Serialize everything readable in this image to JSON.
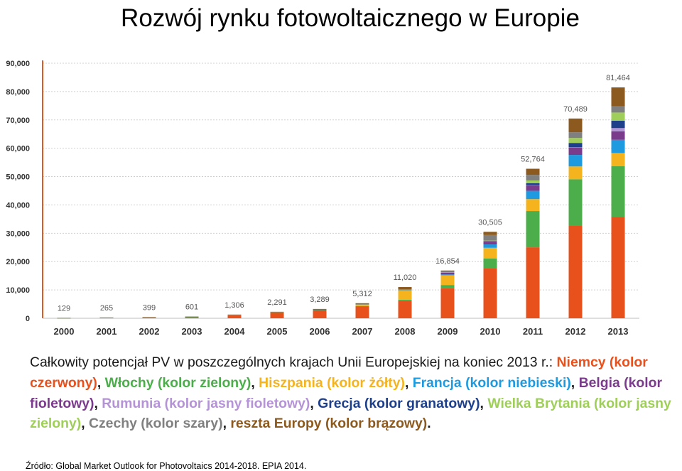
{
  "title": "Rozwój rynku fotowoltaicznego w Europie",
  "description": {
    "intro": "Całkowity potencjał PV w poszczególnych krajach Unii Europejskiej na koniec 2013 r.:",
    "legend": [
      {
        "text": "Niemcy (kolor czerwony)",
        "color": "#e8501c",
        "sep": ", "
      },
      {
        "text": "Włochy (kolor zielony)",
        "color": "#4bae4a",
        "sep": ", "
      },
      {
        "text": "Hiszpania (kolor żółty)",
        "color": "#f5b41e",
        "sep": ", "
      },
      {
        "text": "Francja (kolor niebieski)",
        "color": "#1e9be0",
        "sep": ", "
      },
      {
        "text": "Belgia (kolor fioletowy)",
        "color": "#7b3b8c",
        "sep": ", "
      },
      {
        "text": "Rumunia (kolor jasny fioletowy)",
        "color": "#b493d6",
        "sep": ", "
      },
      {
        "text": "Grecja (kolor granatowy)",
        "color": "#1e3f8a",
        "sep": ", "
      },
      {
        "text": "Wielka Brytania (kolor jasny zielony)",
        "color": "#9fcf5a",
        "sep": ", "
      },
      {
        "text": "Czechy (kolor szary)",
        "color": "#808080",
        "sep": ", "
      },
      {
        "text": "reszta Europy (kolor brązowy)",
        "color": "#8c5a1e",
        "sep": "."
      }
    ]
  },
  "source": "Źródło: Global Market Outlook for Photovoltaics 2014-2018. EPIA 2014.",
  "chart_data": {
    "type": "bar",
    "stacked": true,
    "grid": true,
    "ylim": [
      0,
      90000
    ],
    "yticks": [
      "0",
      "10,000",
      "20,000",
      "30,000",
      "40,000",
      "50,000",
      "60,000",
      "70,000",
      "80,000",
      "90,000"
    ],
    "categories": [
      "2000",
      "2001",
      "2002",
      "2003",
      "2004",
      "2005",
      "2006",
      "2007",
      "2008",
      "2009",
      "2010",
      "2011",
      "2012",
      "2013"
    ],
    "totals": [
      129,
      265,
      399,
      601,
      1306,
      2291,
      3289,
      5312,
      11020,
      16854,
      30505,
      52764,
      70489,
      81464
    ],
    "total_labels": [
      "129",
      "265",
      "399",
      "601",
      "1,306",
      "2,291",
      "3,289",
      "5,312",
      "11,020",
      "16,854",
      "30,505",
      "52,764",
      "70,489",
      "81,464"
    ],
    "series": [
      {
        "color": "#e8501c",
        "values": [
          76,
          186,
          296,
          435,
          1105,
          2056,
          2899,
          4170,
          6120,
          10566,
          17554,
          25040,
          32703,
          35715
        ]
      },
      {
        "color": "#4bae4a",
        "values": [
          19,
          20,
          22,
          26,
          31,
          38,
          50,
          120,
          458,
          1181,
          3502,
          12803,
          16361,
          17928
        ]
      },
      {
        "color": "#f5b41e",
        "values": [
          1,
          4,
          7,
          12,
          23,
          48,
          145,
          690,
          3398,
          3438,
          3808,
          4214,
          4516,
          4669
        ]
      },
      {
        "color": "#1e9be0",
        "values": [
          7,
          7,
          8,
          9,
          11,
          13,
          15,
          26,
          81,
          277,
          1197,
          2924,
          4060,
          4673
        ]
      },
      {
        "color": "#7b3b8c",
        "values": [
          0,
          0,
          0,
          0,
          0,
          2,
          4,
          20,
          108,
          649,
          1055,
          2018,
          2650,
          2983
        ]
      },
      {
        "color": "#b493d6",
        "values": [
          0,
          0,
          0,
          0,
          0,
          0,
          0,
          0,
          0,
          0,
          2,
          4,
          51,
          1151
        ]
      },
      {
        "color": "#1e3f8a",
        "values": [
          1,
          1,
          1,
          1,
          1,
          1,
          5,
          9,
          18,
          55,
          205,
          631,
          1536,
          2579
        ]
      },
      {
        "color": "#9fcf5a",
        "values": [
          2,
          3,
          4,
          6,
          8,
          10,
          12,
          18,
          22,
          27,
          95,
          1000,
          1753,
          2900
        ]
      },
      {
        "color": "#808080",
        "values": [
          0,
          0,
          0,
          0,
          0,
          0,
          1,
          4,
          40,
          465,
          1953,
          1960,
          2022,
          2175
        ]
      },
      {
        "color": "#8c5a1e",
        "values": [
          23,
          44,
          61,
          112,
          127,
          123,
          158,
          255,
          775,
          196,
          1134,
          2170,
          4837,
          6691
        ]
      }
    ]
  }
}
